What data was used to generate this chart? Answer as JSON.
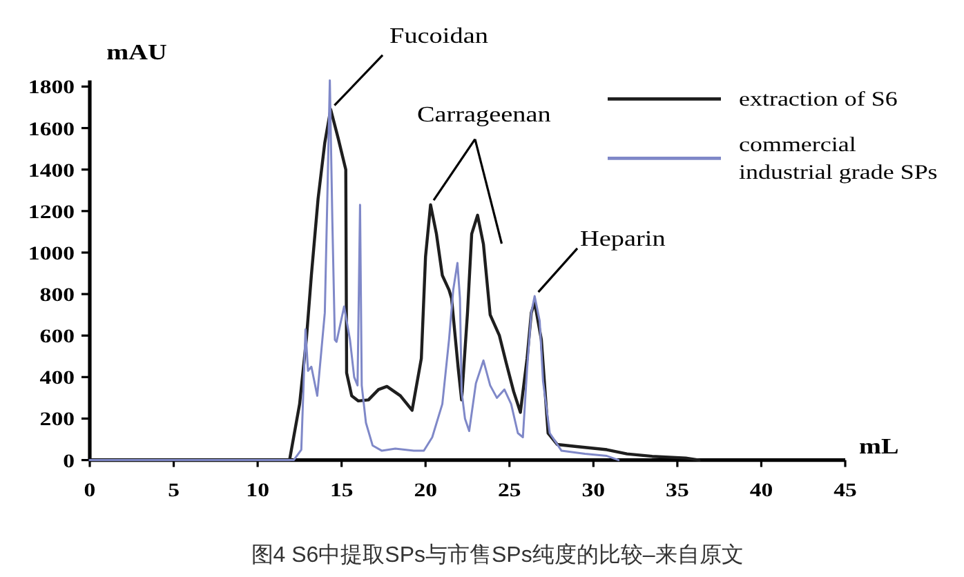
{
  "chart_data": {
    "type": "line",
    "xlabel": "mL",
    "ylabel": "mAU",
    "xlim": [
      0,
      45
    ],
    "ylim": [
      0,
      1830
    ],
    "xticks": [
      0,
      5,
      10,
      15,
      20,
      25,
      30,
      35,
      40,
      45
    ],
    "yticks": [
      0,
      200,
      400,
      600,
      800,
      1000,
      1200,
      1400,
      1600,
      1800
    ],
    "legend": "top right",
    "series": [
      {
        "name": "extraction of S6",
        "color": "#1e1e1e",
        "x": [
          0,
          11.9,
          12.5,
          12.9,
          13.2,
          13.6,
          14.0,
          14.35,
          14.8,
          15.25,
          15.3,
          15.6,
          16.0,
          16.6,
          17.2,
          17.7,
          18.5,
          19.2,
          19.75,
          20.0,
          20.3,
          20.65,
          21.0,
          21.4,
          21.55,
          21.95,
          22.15,
          22.5,
          22.75,
          23.1,
          23.45,
          23.85,
          24.4,
          24.8,
          25.25,
          25.65,
          26.05,
          26.3,
          26.5,
          26.9,
          27.3,
          27.85,
          29.0,
          30.8,
          32.0,
          33.5,
          35.5,
          36.3
        ],
        "values": [
          0,
          0,
          270,
          580,
          890,
          1260,
          1530,
          1690,
          1550,
          1400,
          420,
          310,
          285,
          290,
          340,
          355,
          310,
          240,
          490,
          980,
          1230,
          1090,
          890,
          820,
          780,
          440,
          290,
          710,
          1090,
          1180,
          1040,
          700,
          600,
          470,
          330,
          230,
          490,
          710,
          760,
          580,
          130,
          75,
          65,
          50,
          30,
          18,
          10,
          0
        ]
      },
      {
        "name": "commercial\nindustrial grade SPs",
        "color": "#7f88c8",
        "x": [
          0,
          12.15,
          12.6,
          12.85,
          13.0,
          13.2,
          13.55,
          14.0,
          14.15,
          14.3,
          14.45,
          14.6,
          14.7,
          15.15,
          15.5,
          15.75,
          15.95,
          16.1,
          16.2,
          16.45,
          16.85,
          17.4,
          18.2,
          19.3,
          19.9,
          20.4,
          21.0,
          21.4,
          21.65,
          21.9,
          22.05,
          22.15,
          22.35,
          22.6,
          23.0,
          23.45,
          23.85,
          24.25,
          24.7,
          25.1,
          25.5,
          25.8,
          26.05,
          26.3,
          26.5,
          26.8,
          27.0,
          27.4,
          28.1,
          29.5,
          30.8,
          31.5
        ],
        "values": [
          0,
          0,
          50,
          630,
          430,
          450,
          310,
          710,
          1260,
          1830,
          1150,
          580,
          570,
          740,
          580,
          400,
          360,
          1230,
          360,
          180,
          70,
          45,
          55,
          45,
          45,
          110,
          270,
          580,
          820,
          950,
          780,
          330,
          200,
          140,
          370,
          480,
          360,
          300,
          340,
          270,
          130,
          110,
          440,
          710,
          790,
          670,
          380,
          130,
          45,
          30,
          20,
          0
        ]
      }
    ],
    "annotations": [
      {
        "text": "Fucoidan",
        "x": 14.35,
        "y": 1690
      },
      {
        "text": "Carrageenan",
        "x": 20.3,
        "y": 1230
      },
      {
        "text": "Heparin",
        "x": 26.5,
        "y": 790
      },
      "图4 S6中提取SPs与市售SPs纯度的比较–来自原文"
    ]
  }
}
